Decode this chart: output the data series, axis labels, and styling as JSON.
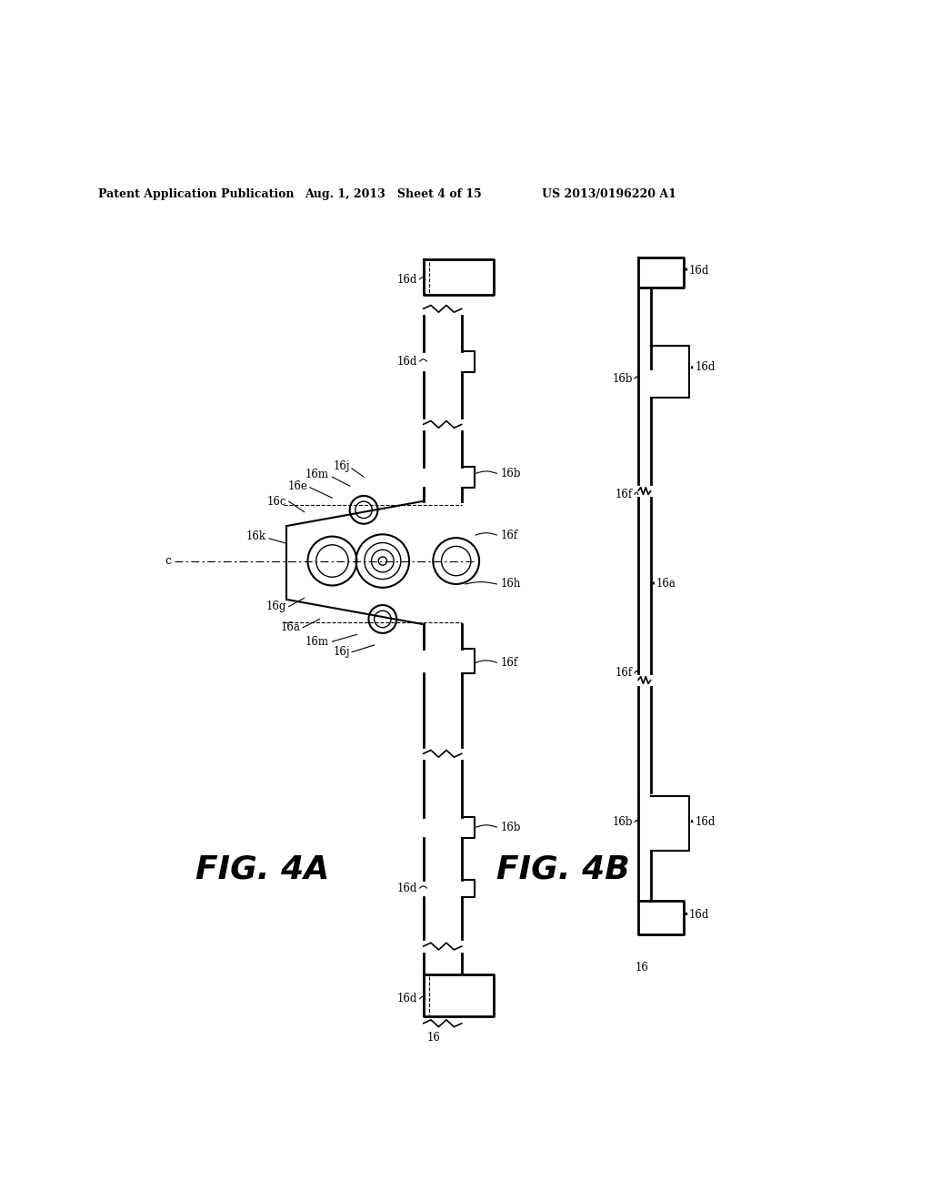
{
  "bg_color": "#ffffff",
  "header_left": "Patent Application Publication",
  "header_mid": "Aug. 1, 2013   Sheet 4 of 15",
  "header_right": "US 2013/0196220 A1",
  "fig4a_label": "FIG. 4A",
  "fig4b_label": "FIG. 4B"
}
